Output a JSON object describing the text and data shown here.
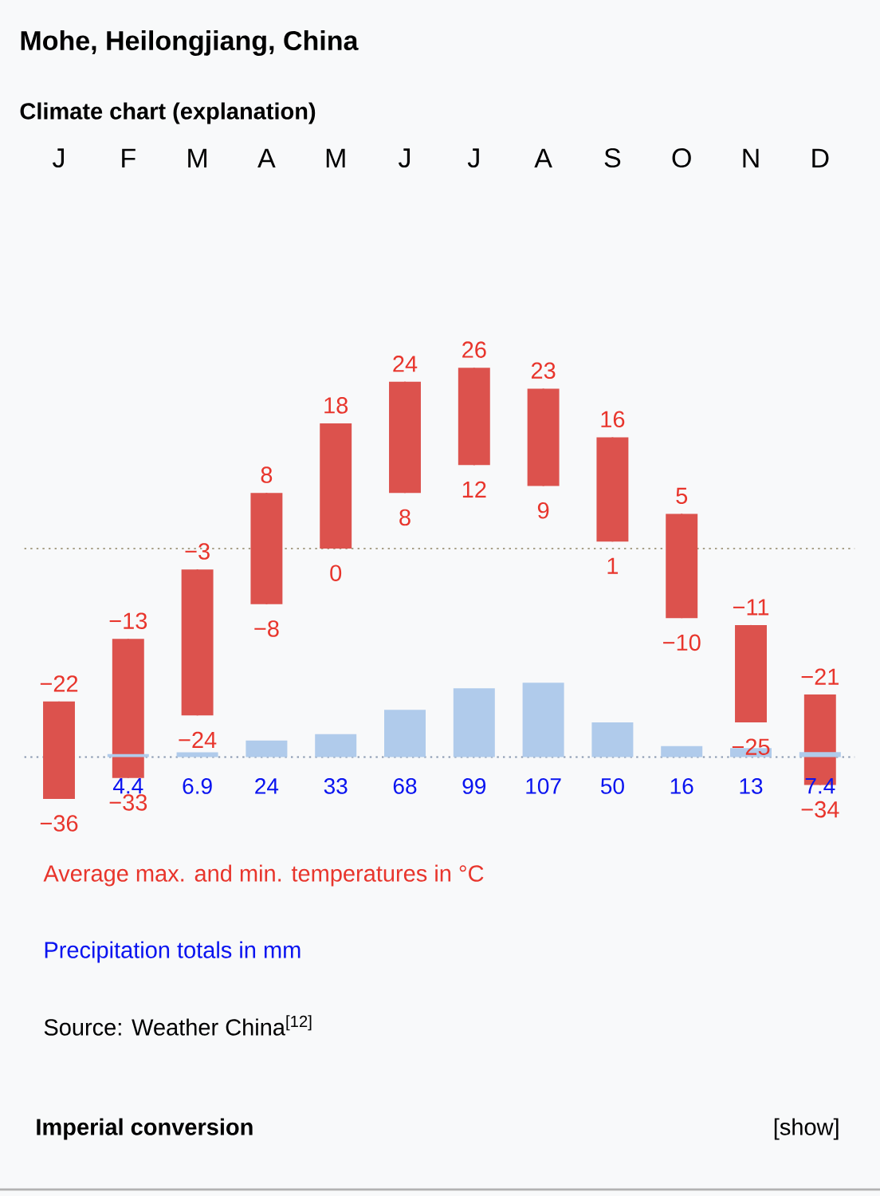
{
  "chart_data": [
    {
      "type": "candlestick",
      "title": "Mohe, Heilongjiang, China",
      "subtitle": "Climate chart (explanation)",
      "categories": [
        "J",
        "F",
        "M",
        "A",
        "M",
        "J",
        "J",
        "A",
        "S",
        "O",
        "N",
        "D"
      ],
      "ohlc": [
        [
          -36,
          -22,
          -36,
          -22
        ],
        [
          -33,
          -13,
          -33,
          -13
        ],
        [
          -24,
          -3,
          -24,
          -3
        ],
        [
          -8,
          8,
          -8,
          8
        ],
        [
          0,
          18,
          0,
          18
        ],
        [
          8,
          24,
          8,
          24
        ],
        [
          12,
          26,
          12,
          26
        ],
        [
          9,
          23,
          9,
          23
        ],
        [
          1,
          16,
          1,
          16
        ],
        [
          -10,
          5,
          -10,
          5
        ],
        [
          -25,
          -11,
          -25,
          -11
        ],
        [
          -34,
          -21,
          -34,
          -21
        ]
      ],
      "color": "#dc524d",
      "ref_lines": [
        {
          "axis": "y",
          "value": 0,
          "color": "#a8a088",
          "line_style": "dotted"
        }
      ],
      "annotations": [
        {
          "text": "−22",
          "y": -22
        },
        {
          "text": "−36",
          "y": -36
        },
        {
          "text": "−13",
          "y": -13
        },
        {
          "text": "−33",
          "y": -33
        },
        {
          "text": "−3",
          "y": -3
        },
        {
          "text": "−24",
          "y": -24
        },
        {
          "text": "8",
          "y": 8
        },
        {
          "text": "−8",
          "y": -8
        },
        {
          "text": "18",
          "y": 18
        },
        {
          "text": "0",
          "y": 0
        },
        {
          "text": "24",
          "y": 24
        },
        {
          "text": "8",
          "y": 8
        },
        {
          "text": "26",
          "y": 26
        },
        {
          "text": "12",
          "y": 12
        },
        {
          "text": "23",
          "y": 23
        },
        {
          "text": "9",
          "y": 9
        },
        {
          "text": "16",
          "y": 16
        },
        {
          "text": "1",
          "y": 1
        },
        {
          "text": "5",
          "y": 5
        },
        {
          "text": "−10",
          "y": -10
        },
        {
          "text": "−11",
          "y": -11
        },
        {
          "text": "−25",
          "y": -25
        },
        {
          "text": "−21",
          "y": -21
        },
        {
          "text": "−34",
          "y": -34
        },
        "Average max. and min. temperatures in °C",
        "Precipitation totals in mm",
        "Source: Weather China$^{[12]}$",
        "Imperial conversion",
        "[show]"
      ]
    },
    {
      "type": "bar",
      "categories": [
        null,
        null,
        null,
        null,
        null,
        null,
        null,
        null,
        null,
        null,
        null,
        null
      ],
      "series": [
        {
          "color": "#b0cbeb",
          "values": [
            null,
            4.4,
            6.9,
            24,
            33,
            68,
            99,
            107,
            50,
            16,
            13,
            7.4
          ]
        }
      ],
      "data_labels": true,
      "ref_lines": [
        {
          "axis": "y",
          "value": 0,
          "color": "#8898b0",
          "line_style": "dotted"
        }
      ]
    }
  ]
}
